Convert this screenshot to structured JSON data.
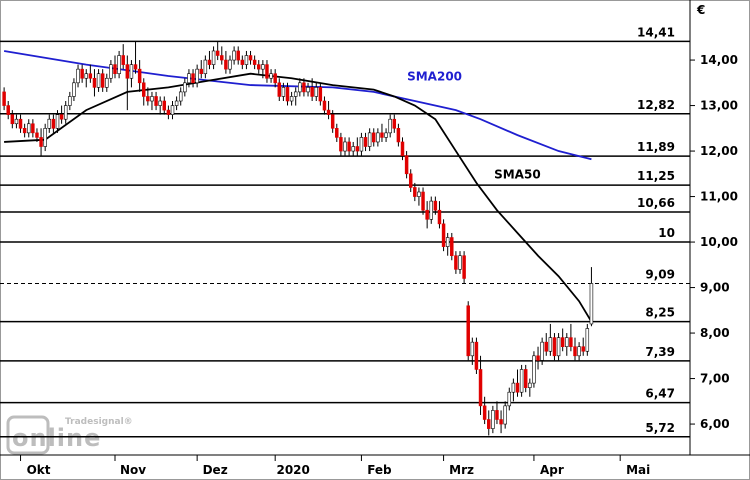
{
  "chart_data": {
    "type": "candlestick",
    "currency": "€",
    "watermark": {
      "brand": "Tradesignal®",
      "product": "online"
    },
    "xlim": [
      -1,
      167
    ],
    "xticks": [
      {
        "value": 4,
        "label": "Okt"
      },
      {
        "value": 27,
        "label": "Nov"
      },
      {
        "value": 47,
        "label": "Dez"
      },
      {
        "value": 66,
        "label": "2020"
      },
      {
        "value": 87,
        "label": "Feb"
      },
      {
        "value": 107,
        "label": "Mrz"
      },
      {
        "value": 129,
        "label": "Apr"
      },
      {
        "value": 150,
        "label": "Mai"
      }
    ],
    "ylim": [
      5.32,
      15.32
    ],
    "yticks": [
      {
        "value": 6,
        "label": "6,00"
      },
      {
        "value": 7,
        "label": "7,00"
      },
      {
        "value": 8,
        "label": "8,00"
      },
      {
        "value": 9,
        "label": "9,00"
      },
      {
        "value": 10,
        "label": "10,00"
      },
      {
        "value": 11,
        "label": "11,00"
      },
      {
        "value": 12,
        "label": "12,00"
      },
      {
        "value": 13,
        "label": "13,00"
      },
      {
        "value": 14,
        "label": "14,00"
      }
    ],
    "levels": [
      {
        "value": 14.41,
        "label": "14,41"
      },
      {
        "value": 12.82,
        "label": "12,82"
      },
      {
        "value": 11.89,
        "label": "11,89"
      },
      {
        "value": 11.25,
        "label": "11,25"
      },
      {
        "value": 10.66,
        "label": "10,66"
      },
      10,
      {
        "value": 9.09,
        "label": "9,09"
      },
      {
        "value": 8.25,
        "label": "8,25"
      },
      {
        "value": 7.39,
        "label": "7,39"
      },
      {
        "value": 6.47,
        "label": "6,47"
      },
      {
        "value": 5.72,
        "label": "5,72"
      }
    ],
    "dashed_level": 6,
    "up_color": "#ffffff",
    "down_color": "#e00000",
    "ohlc": [
      [
        13.3,
        13.4,
        12.9,
        13.0
      ],
      [
        13.0,
        13.1,
        12.7,
        12.8
      ],
      [
        12.8,
        12.9,
        12.5,
        12.6
      ],
      [
        12.6,
        12.8,
        12.5,
        12.7
      ],
      [
        12.7,
        12.8,
        12.4,
        12.5
      ],
      [
        12.5,
        12.6,
        12.3,
        12.4
      ],
      [
        12.4,
        12.7,
        12.3,
        12.6
      ],
      [
        12.6,
        12.7,
        12.3,
        12.4
      ],
      [
        12.4,
        12.5,
        12.2,
        12.3
      ],
      [
        12.3,
        12.5,
        11.9,
        12.1
      ],
      [
        12.1,
        12.6,
        12.0,
        12.5
      ],
      [
        12.5,
        12.8,
        12.4,
        12.7
      ],
      [
        12.7,
        12.8,
        12.4,
        12.5
      ],
      [
        12.5,
        12.9,
        12.4,
        12.8
      ],
      [
        12.8,
        13.0,
        12.6,
        12.7
      ],
      [
        12.7,
        13.1,
        12.6,
        13.0
      ],
      [
        13.0,
        13.3,
        12.9,
        13.2
      ],
      [
        13.2,
        13.6,
        13.1,
        13.5
      ],
      [
        13.5,
        13.9,
        13.4,
        13.8
      ],
      [
        13.8,
        13.9,
        13.5,
        13.6
      ],
      [
        13.6,
        13.8,
        13.4,
        13.7
      ],
      [
        13.7,
        13.9,
        13.5,
        13.6
      ],
      [
        13.6,
        13.8,
        13.2,
        13.4
      ],
      [
        13.4,
        13.8,
        13.3,
        13.7
      ],
      [
        13.7,
        13.8,
        13.3,
        13.4
      ],
      [
        13.4,
        13.7,
        13.3,
        13.6
      ],
      [
        13.6,
        14.0,
        13.5,
        13.9
      ],
      [
        13.9,
        14.1,
        13.6,
        13.7
      ],
      [
        13.7,
        14.2,
        13.6,
        14.1
      ],
      [
        14.1,
        14.35,
        13.8,
        13.9
      ],
      [
        13.9,
        14.1,
        12.9,
        13.6
      ],
      [
        13.6,
        14.0,
        13.4,
        13.9
      ],
      [
        13.9,
        14.4,
        13.7,
        13.8
      ],
      [
        13.8,
        14.0,
        13.3,
        13.5
      ],
      [
        13.5,
        13.6,
        13.0,
        13.2
      ],
      [
        13.2,
        13.4,
        13.0,
        13.1
      ],
      [
        13.1,
        13.3,
        12.9,
        13.2
      ],
      [
        13.2,
        13.3,
        12.9,
        13.0
      ],
      [
        13.0,
        13.2,
        12.8,
        13.1
      ],
      [
        13.1,
        13.2,
        12.8,
        12.9
      ],
      [
        12.9,
        13.0,
        12.7,
        12.8
      ],
      [
        12.8,
        13.1,
        12.7,
        13.0
      ],
      [
        13.0,
        13.2,
        12.9,
        13.1
      ],
      [
        13.1,
        13.4,
        13.0,
        13.3
      ],
      [
        13.3,
        13.6,
        13.2,
        13.5
      ],
      [
        13.5,
        13.8,
        13.4,
        13.7
      ],
      [
        13.7,
        13.8,
        13.4,
        13.5
      ],
      [
        13.5,
        13.9,
        13.4,
        13.8
      ],
      [
        13.8,
        14.0,
        13.6,
        13.7
      ],
      [
        13.7,
        14.1,
        13.6,
        14.0
      ],
      [
        14.0,
        14.2,
        13.8,
        13.9
      ],
      [
        13.9,
        14.3,
        13.8,
        14.2
      ],
      [
        14.2,
        14.4,
        14.0,
        14.1
      ],
      [
        14.1,
        14.3,
        13.9,
        14.0
      ],
      [
        14.0,
        14.2,
        13.7,
        13.8
      ],
      [
        13.8,
        14.1,
        13.7,
        14.0
      ],
      [
        14.0,
        14.3,
        13.9,
        14.2
      ],
      [
        14.2,
        14.3,
        13.9,
        14.0
      ],
      [
        14.0,
        14.1,
        13.8,
        13.9
      ],
      [
        13.9,
        14.2,
        13.8,
        14.1
      ],
      [
        14.1,
        14.2,
        13.9,
        14.0
      ],
      [
        14.0,
        14.1,
        13.8,
        13.9
      ],
      [
        13.9,
        14.0,
        13.7,
        13.8
      ],
      [
        13.8,
        14.0,
        13.6,
        13.9
      ],
      [
        13.9,
        14.0,
        13.5,
        13.6
      ],
      [
        13.6,
        13.8,
        13.5,
        13.7
      ],
      [
        13.7,
        13.8,
        13.4,
        13.5
      ],
      [
        13.5,
        13.6,
        13.1,
        13.2
      ],
      [
        13.2,
        13.5,
        13.1,
        13.4
      ],
      [
        13.4,
        13.5,
        13.0,
        13.1
      ],
      [
        13.1,
        13.3,
        13.0,
        13.2
      ],
      [
        13.2,
        13.4,
        13.0,
        13.3
      ],
      [
        13.3,
        13.6,
        13.2,
        13.5
      ],
      [
        13.5,
        13.6,
        13.2,
        13.3
      ],
      [
        13.3,
        13.5,
        13.2,
        13.4
      ],
      [
        13.4,
        13.6,
        13.1,
        13.2
      ],
      [
        13.2,
        13.5,
        13.1,
        13.4
      ],
      [
        13.4,
        13.5,
        13.0,
        13.1
      ],
      [
        13.1,
        13.2,
        12.8,
        12.9
      ],
      [
        12.9,
        13.1,
        12.7,
        12.8
      ],
      [
        12.8,
        12.9,
        12.4,
        12.5
      ],
      [
        12.5,
        12.6,
        12.2,
        12.3
      ],
      [
        12.3,
        12.4,
        11.9,
        12.0
      ],
      [
        12.0,
        12.3,
        11.9,
        12.2
      ],
      [
        12.2,
        12.3,
        11.9,
        12.0
      ],
      [
        12.0,
        12.2,
        11.9,
        12.1
      ],
      [
        12.1,
        12.3,
        11.9,
        12.0
      ],
      [
        12.0,
        12.4,
        11.9,
        12.3
      ],
      [
        12.3,
        12.4,
        12.0,
        12.1
      ],
      [
        12.1,
        12.5,
        12.0,
        12.4
      ],
      [
        12.4,
        12.5,
        12.1,
        12.2
      ],
      [
        12.2,
        12.5,
        12.1,
        12.4
      ],
      [
        12.4,
        12.6,
        12.2,
        12.3
      ],
      [
        12.3,
        12.5,
        12.2,
        12.4
      ],
      [
        12.4,
        12.8,
        12.3,
        12.7
      ],
      [
        12.7,
        12.8,
        12.4,
        12.5
      ],
      [
        12.5,
        12.6,
        12.1,
        12.2
      ],
      [
        12.2,
        12.3,
        11.8,
        11.9
      ],
      [
        11.9,
        12.0,
        11.4,
        11.5
      ],
      [
        11.5,
        11.6,
        11.1,
        11.2
      ],
      [
        11.2,
        11.3,
        10.9,
        11.0
      ],
      [
        11.0,
        11.2,
        10.8,
        11.1
      ],
      [
        11.1,
        11.2,
        10.6,
        10.7
      ],
      [
        10.7,
        10.9,
        10.3,
        10.5
      ],
      [
        10.5,
        11.0,
        10.4,
        10.9
      ],
      [
        10.9,
        11.0,
        10.6,
        10.7
      ],
      [
        10.7,
        10.9,
        10.3,
        10.4
      ],
      [
        10.4,
        10.5,
        9.8,
        9.9
      ],
      [
        9.9,
        10.2,
        9.7,
        10.1
      ],
      [
        10.1,
        10.2,
        9.6,
        9.7
      ],
      [
        9.7,
        9.8,
        9.3,
        9.4
      ],
      [
        9.4,
        9.8,
        9.3,
        9.7
      ],
      [
        9.7,
        9.8,
        9.1,
        9.2
      ],
      [
        8.6,
        8.7,
        7.4,
        7.5
      ],
      [
        7.5,
        7.9,
        7.3,
        7.8
      ],
      [
        7.8,
        7.9,
        7.1,
        7.2
      ],
      [
        7.2,
        7.5,
        6.2,
        6.4
      ],
      [
        6.4,
        6.6,
        6.0,
        6.1
      ],
      [
        6.1,
        6.3,
        5.75,
        5.9
      ],
      [
        5.9,
        6.4,
        5.8,
        6.3
      ],
      [
        6.3,
        6.5,
        6.0,
        6.1
      ],
      [
        6.1,
        6.3,
        5.8,
        6.0
      ],
      [
        6.0,
        6.5,
        5.9,
        6.4
      ],
      [
        6.4,
        6.8,
        6.3,
        6.7
      ],
      [
        6.7,
        7.0,
        6.5,
        6.9
      ],
      [
        6.9,
        7.2,
        6.6,
        6.7
      ],
      [
        6.7,
        7.3,
        6.6,
        7.2
      ],
      [
        7.2,
        7.3,
        6.7,
        6.8
      ],
      [
        6.8,
        7.0,
        6.6,
        6.9
      ],
      [
        6.9,
        7.6,
        6.8,
        7.5
      ],
      [
        7.5,
        7.7,
        7.2,
        7.4
      ],
      [
        7.4,
        7.9,
        7.3,
        7.8
      ],
      [
        7.8,
        8.0,
        7.5,
        7.6
      ],
      [
        7.6,
        8.2,
        7.5,
        7.9
      ],
      [
        7.9,
        8.0,
        7.4,
        7.5
      ],
      [
        7.5,
        8.0,
        7.4,
        7.9
      ],
      [
        7.9,
        8.1,
        7.6,
        7.7
      ],
      [
        7.7,
        8.0,
        7.5,
        7.9
      ],
      [
        7.9,
        8.2,
        7.6,
        7.7
      ],
      [
        7.7,
        7.9,
        7.4,
        7.5
      ],
      [
        7.5,
        7.8,
        7.4,
        7.7
      ],
      [
        7.7,
        7.9,
        7.5,
        7.6
      ],
      [
        7.6,
        8.2,
        7.5,
        8.1
      ],
      [
        8.2,
        9.45,
        8.15,
        9.09
      ]
    ],
    "series": [
      {
        "name": "SMA200",
        "color": "#1f1fd0",
        "x": [
          0,
          20,
          40,
          60,
          80,
          90,
          100,
          110,
          116,
          125,
          135,
          143
        ],
        "values": [
          14.2,
          13.9,
          13.65,
          13.45,
          13.4,
          13.3,
          13.1,
          12.9,
          12.7,
          12.35,
          12.0,
          11.82
        ]
      },
      {
        "name": "SMA50",
        "color": "#000000",
        "x": [
          0,
          10,
          20,
          30,
          40,
          50,
          60,
          70,
          80,
          90,
          95,
          100,
          105,
          110,
          115,
          120,
          125,
          130,
          135,
          140,
          143
        ],
        "values": [
          12.2,
          12.25,
          12.9,
          13.3,
          13.4,
          13.55,
          13.7,
          13.6,
          13.45,
          13.35,
          13.2,
          13.0,
          12.7,
          12.0,
          11.3,
          10.7,
          10.2,
          9.7,
          9.25,
          8.7,
          8.25
        ]
      }
    ]
  }
}
